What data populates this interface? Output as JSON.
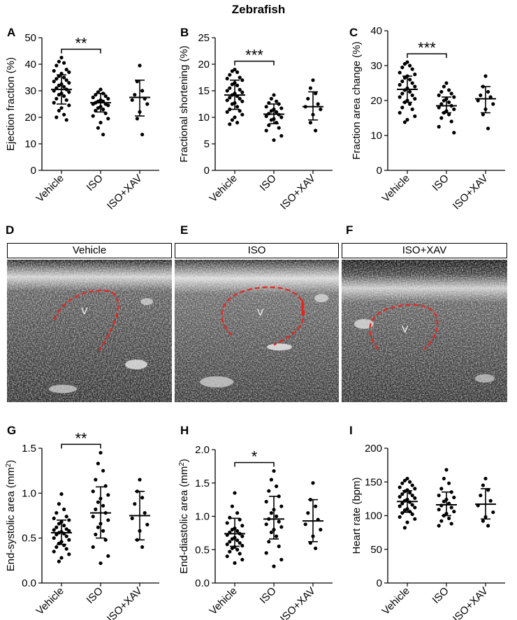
{
  "figure_title": "Zebrafish",
  "colors": {
    "point": "#000000",
    "contour": "#e8231e",
    "bg": "#ffffff"
  },
  "chart_data": [
    {
      "panel": "A",
      "type": "scatter",
      "ylabel": "Ejection fraction (%)",
      "ylim": [
        0,
        50
      ],
      "yticks": [
        0,
        10,
        20,
        30,
        40,
        50
      ],
      "categories": [
        "Vehicle",
        "ISO",
        "ISO+XAV"
      ],
      "groups": [
        {
          "name": "Vehicle",
          "mean": 30.5,
          "sd_low": 25.0,
          "sd_high": 36.0,
          "values": [
            42.5,
            41.0,
            40.5,
            39.5,
            38.0,
            37.5,
            37.0,
            36.5,
            35.5,
            35.0,
            34.5,
            34.0,
            33.5,
            33.0,
            32.5,
            32.0,
            31.5,
            31.0,
            30.5,
            30.0,
            29.5,
            29.0,
            28.5,
            28.0,
            27.0,
            26.5,
            25.5,
            24.5,
            23.5,
            22.5,
            21.0,
            20.0,
            19.0
          ]
        },
        {
          "name": "ISO",
          "mean": 25.5,
          "sd_low": 22.0,
          "sd_high": 29.0,
          "values": [
            30.5,
            29.5,
            29.0,
            28.5,
            28.0,
            27.5,
            27.0,
            26.5,
            26.0,
            26.0,
            25.5,
            25.0,
            25.0,
            24.5,
            24.0,
            23.5,
            23.0,
            22.5,
            21.5,
            20.5,
            19.5,
            18.0,
            16.0,
            13.5
          ]
        },
        {
          "name": "ISO+XAV",
          "mean": 27.5,
          "sd_low": 20.5,
          "sd_high": 34.0,
          "values": [
            39.5,
            33.5,
            30.0,
            28.5,
            27.0,
            26.5,
            25.0,
            22.0,
            19.5,
            13.5
          ]
        }
      ],
      "significance": {
        "between": [
          "Vehicle",
          "ISO"
        ],
        "label": "**"
      }
    },
    {
      "panel": "B",
      "type": "scatter",
      "ylabel": "Fractional shortening (%)",
      "ylim": [
        0,
        25
      ],
      "yticks": [
        0,
        5,
        10,
        15,
        20,
        25
      ],
      "categories": [
        "Vehicle",
        "ISO",
        "ISO+XAV"
      ],
      "groups": [
        {
          "name": "Vehicle",
          "mean": 14.2,
          "sd_low": 11.5,
          "sd_high": 17.0,
          "values": [
            19.0,
            18.7,
            18.5,
            18.0,
            17.5,
            17.3,
            17.0,
            16.5,
            16.2,
            16.0,
            15.5,
            15.2,
            15.0,
            14.7,
            14.5,
            14.2,
            14.0,
            13.7,
            13.5,
            13.2,
            13.0,
            12.7,
            12.5,
            12.0,
            11.5,
            11.2,
            11.0,
            10.5,
            10.0,
            9.5,
            9.0,
            8.7
          ]
        },
        {
          "name": "ISO",
          "mean": 10.6,
          "sd_low": 8.8,
          "sd_high": 12.5,
          "values": [
            14.2,
            13.5,
            13.0,
            12.7,
            12.5,
            12.0,
            11.7,
            11.5,
            11.2,
            11.0,
            10.7,
            10.5,
            10.2,
            10.0,
            9.7,
            9.5,
            9.0,
            8.5,
            8.0,
            7.5,
            6.5,
            5.7
          ]
        },
        {
          "name": "ISO+XAV",
          "mean": 12.0,
          "sd_low": 9.5,
          "sd_high": 14.8,
          "values": [
            17.0,
            15.5,
            14.5,
            13.5,
            12.5,
            12.0,
            11.5,
            10.5,
            9.0,
            7.5
          ]
        }
      ],
      "significance": {
        "between": [
          "Vehicle",
          "ISO"
        ],
        "label": "***"
      }
    },
    {
      "panel": "C",
      "type": "scatter",
      "ylabel": "Fraction area change (%)",
      "ylim": [
        0,
        40
      ],
      "yticks": [
        0,
        10,
        20,
        30,
        40
      ],
      "categories": [
        "Vehicle",
        "ISO",
        "ISO+XAV"
      ],
      "groups": [
        {
          "name": "Vehicle",
          "mean": 23.2,
          "sd_low": 19.5,
          "sd_high": 27.0,
          "values": [
            31.0,
            30.5,
            30.0,
            29.5,
            29.0,
            28.0,
            27.5,
            27.0,
            26.5,
            26.0,
            25.5,
            25.0,
            24.5,
            24.0,
            23.5,
            23.0,
            22.5,
            22.0,
            21.5,
            21.0,
            20.5,
            20.0,
            19.5,
            19.0,
            18.0,
            17.5,
            16.5,
            15.5,
            14.5,
            13.8
          ]
        },
        {
          "name": "ISO",
          "mean": 18.5,
          "sd_low": 16.5,
          "sd_high": 21.0,
          "values": [
            25.0,
            24.0,
            23.0,
            22.5,
            22.0,
            21.5,
            21.0,
            20.5,
            20.0,
            19.5,
            19.0,
            18.5,
            18.0,
            17.5,
            17.0,
            16.5,
            16.0,
            15.0,
            14.0,
            12.5,
            10.8
          ]
        },
        {
          "name": "ISO+XAV",
          "mean": 20.5,
          "sd_low": 16.5,
          "sd_high": 24.0,
          "values": [
            27.0,
            24.0,
            22.5,
            21.5,
            21.0,
            20.0,
            19.0,
            17.5,
            16.0,
            12.0
          ]
        }
      ],
      "significance": {
        "between": [
          "Vehicle",
          "ISO"
        ],
        "label": "***"
      }
    },
    {
      "panel": "G",
      "type": "scatter",
      "ylabel": "End-systolic area (mm",
      "ylabel_sup": "2",
      "ylabel_close": ")",
      "ylim": [
        0,
        1.5
      ],
      "yticks": [
        0.0,
        0.5,
        1.0,
        1.5
      ],
      "ytick_labels": [
        "0.0",
        "0.5",
        "1.0",
        "1.5"
      ],
      "categories": [
        "Vehicle",
        "ISO",
        "ISO+XAV"
      ],
      "groups": [
        {
          "name": "Vehicle",
          "mean": 0.56,
          "sd_low": 0.43,
          "sd_high": 0.7,
          "values": [
            0.99,
            0.88,
            0.82,
            0.78,
            0.74,
            0.72,
            0.7,
            0.68,
            0.66,
            0.64,
            0.62,
            0.6,
            0.59,
            0.58,
            0.57,
            0.56,
            0.55,
            0.54,
            0.52,
            0.5,
            0.48,
            0.46,
            0.44,
            0.42,
            0.4,
            0.38,
            0.35,
            0.32,
            0.28,
            0.24
          ]
        },
        {
          "name": "ISO",
          "mean": 0.78,
          "sd_low": 0.5,
          "sd_high": 1.07,
          "values": [
            1.45,
            1.33,
            1.25,
            1.15,
            1.08,
            1.02,
            0.98,
            0.94,
            0.9,
            0.86,
            0.82,
            0.78,
            0.74,
            0.7,
            0.66,
            0.62,
            0.58,
            0.54,
            0.48,
            0.4,
            0.3,
            0.22
          ]
        },
        {
          "name": "ISO+XAV",
          "mean": 0.75,
          "sd_low": 0.48,
          "sd_high": 1.02,
          "values": [
            1.15,
            1.02,
            0.95,
            0.88,
            0.78,
            0.72,
            0.65,
            0.58,
            0.48,
            0.4
          ]
        }
      ],
      "significance": {
        "between": [
          "Vehicle",
          "ISO"
        ],
        "label": "**"
      }
    },
    {
      "panel": "H",
      "type": "scatter",
      "ylabel": "End-diastolic area (mm",
      "ylabel_sup": "2",
      "ylabel_close": ")",
      "ylim": [
        0,
        2.0
      ],
      "yticks": [
        0.0,
        0.5,
        1.0,
        1.5,
        2.0
      ],
      "ytick_labels": [
        "0.0",
        "0.5",
        "1.0",
        "1.5",
        "2.0"
      ],
      "categories": [
        "Vehicle",
        "ISO",
        "ISO+XAV"
      ],
      "groups": [
        {
          "name": "Vehicle",
          "mean": 0.74,
          "sd_low": 0.55,
          "sd_high": 0.97,
          "values": [
            1.35,
            1.15,
            1.05,
            0.98,
            0.95,
            0.9,
            0.86,
            0.82,
            0.8,
            0.78,
            0.76,
            0.74,
            0.72,
            0.7,
            0.68,
            0.66,
            0.64,
            0.62,
            0.6,
            0.58,
            0.56,
            0.54,
            0.52,
            0.5,
            0.47,
            0.44,
            0.4,
            0.35,
            0.3
          ]
        },
        {
          "name": "ISO",
          "mean": 0.96,
          "sd_low": 0.66,
          "sd_high": 1.3,
          "values": [
            1.68,
            1.55,
            1.45,
            1.38,
            1.3,
            1.22,
            1.15,
            1.1,
            1.05,
            1.0,
            0.96,
            0.92,
            0.88,
            0.84,
            0.8,
            0.76,
            0.7,
            0.62,
            0.55,
            0.45,
            0.35,
            0.25
          ]
        },
        {
          "name": "ISO+XAV",
          "mean": 0.93,
          "sd_low": 0.62,
          "sd_high": 1.25,
          "values": [
            1.5,
            1.25,
            1.15,
            1.05,
            0.95,
            0.88,
            0.8,
            0.7,
            0.6,
            0.52
          ]
        }
      ],
      "significance": {
        "between": [
          "Vehicle",
          "ISO"
        ],
        "label": "*"
      }
    },
    {
      "panel": "I",
      "type": "scatter",
      "ylabel": "Heart rate (bpm)",
      "ylim": [
        0,
        200
      ],
      "yticks": [
        0,
        50,
        100,
        150,
        200
      ],
      "categories": [
        "Vehicle",
        "ISO",
        "ISO+XAV"
      ],
      "groups": [
        {
          "name": "Vehicle",
          "mean": 121,
          "sd_low": 105,
          "sd_high": 137,
          "values": [
            155,
            152,
            150,
            148,
            145,
            142,
            140,
            138,
            136,
            134,
            132,
            130,
            128,
            126,
            124,
            122,
            120,
            118,
            116,
            114,
            112,
            110,
            108,
            106,
            104,
            102,
            98,
            95,
            90,
            82
          ]
        },
        {
          "name": "ISO",
          "mean": 116,
          "sd_low": 100,
          "sd_high": 135,
          "values": [
            168,
            155,
            148,
            140,
            135,
            130,
            127,
            124,
            121,
            118,
            115,
            112,
            109,
            106,
            103,
            100,
            96,
            92,
            88,
            85
          ]
        },
        {
          "name": "ISO+XAV",
          "mean": 117,
          "sd_low": 95,
          "sd_high": 140,
          "values": [
            155,
            145,
            138,
            130,
            122,
            115,
            105,
            98,
            92,
            85
          ]
        }
      ],
      "significance": null
    }
  ],
  "image_panels": [
    {
      "panel": "D",
      "label": "Vehicle",
      "chamber": "V"
    },
    {
      "panel": "E",
      "label": "ISO",
      "chamber": "V"
    },
    {
      "panel": "F",
      "label": "ISO+XAV",
      "chamber": "V"
    }
  ]
}
